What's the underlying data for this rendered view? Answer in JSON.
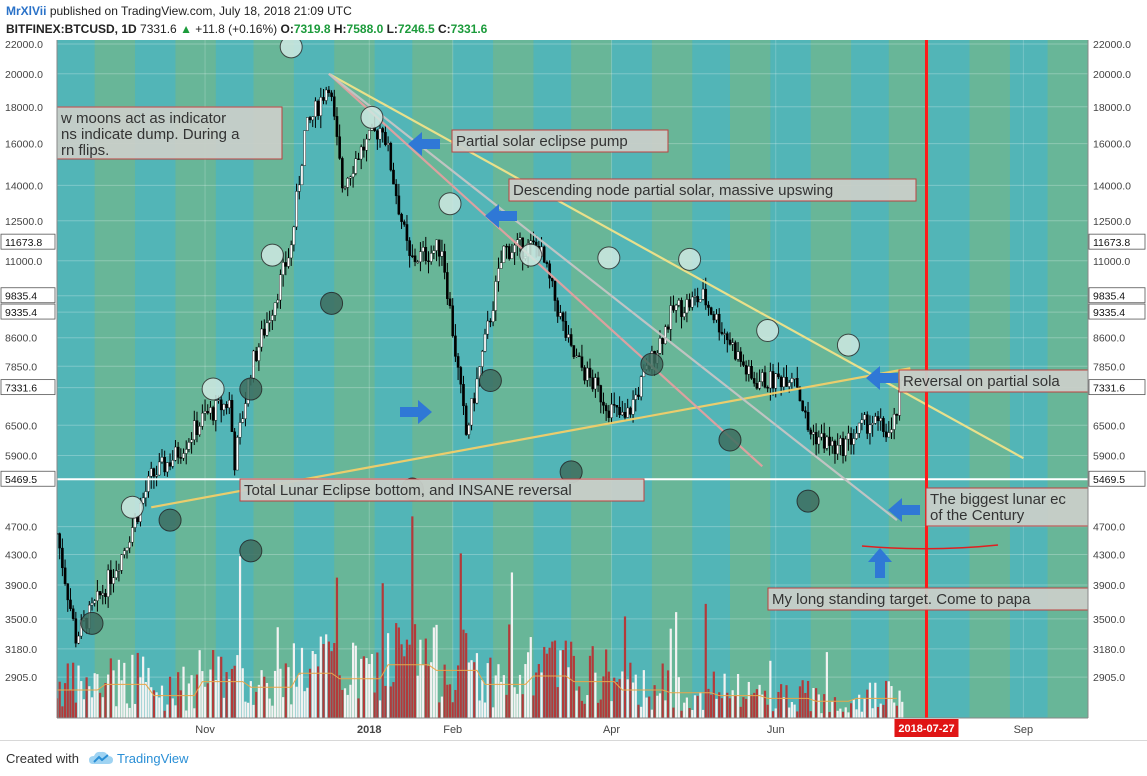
{
  "header": {
    "author": "MrXlVii",
    "published": "published on TradingView.com, July 18, 2018 21:09 UTC",
    "symbol": "BITFINEX:BTCUSD, 1D",
    "last": "7331.6",
    "change": "+11.8 (+0.16%)",
    "o_label": "O:",
    "o": "7319.8",
    "h_label": "H:",
    "h": "7588.0",
    "l_label": "L:",
    "l": "7246.5",
    "c_label": "C:",
    "c": "7331.6"
  },
  "footer": {
    "created_with": "Created with",
    "brand": "TradingView"
  },
  "colors": {
    "bg_teal": "#5bb8a6",
    "bg_blue": "#4bb3c4",
    "bg_green": "#72b48c",
    "candle": "#000000",
    "candle_up": "#ffffff",
    "vol_up": "#f2f2f2",
    "vol_down": "#b33a3a",
    "yellow_line": "#f1e38a",
    "orange_line": "#f3cf6a",
    "pink_line": "#e3a0a0",
    "grey_line": "#c5c5c5",
    "red_line": "#ff1a1a",
    "arrow_blue": "#2f78d6",
    "moon_full": "#cfe9e2",
    "moon_new": "#3e6e60"
  },
  "chart_data": {
    "type": "candlestick",
    "scale": "log",
    "ylim": [
      2700,
      22000
    ],
    "y_ticks": [
      "22000.0",
      "20000.0",
      "18000.0",
      "16000.0",
      "14000.0",
      "12500.0",
      "11000.0",
      "9835.4",
      "9335.4",
      "8600.0",
      "7850.0",
      "7331.6",
      "6500.0",
      "5900.0",
      "5469.5",
      "4700.0",
      "4300.0",
      "3900.0",
      "3500.0",
      "3180.0",
      "2905.0"
    ],
    "highlighted_ticks": [
      "11673.8",
      "9835.4",
      "9335.4",
      "7331.6",
      "5469.5"
    ],
    "y_values": [
      22000,
      20000,
      18000,
      16000,
      14000,
      12500,
      11000,
      9835.4,
      9335.4,
      8600,
      7850,
      7331.6,
      6500,
      5900,
      5469.5,
      4700,
      4300,
      3900,
      3500,
      3180,
      2905
    ],
    "x_range": [
      "2017-09-07",
      "2018-09-25"
    ],
    "x_ticks": [
      {
        "label": "Nov",
        "date": "2017-11-01"
      },
      {
        "label": "2018",
        "date": "2018-01-01"
      },
      {
        "label": "Feb",
        "date": "2018-02-01"
      },
      {
        "label": "Apr",
        "date": "2018-04-01"
      },
      {
        "label": "Jun",
        "date": "2018-06-01"
      },
      {
        "label": "2018-07-27",
        "date": "2018-07-27",
        "highlight": true
      },
      {
        "label": "Sep",
        "date": "2018-09-01"
      }
    ],
    "price_path": [
      [
        "2017-09-07",
        4600
      ],
      [
        "2017-09-14",
        3300
      ],
      [
        "2017-09-22",
        3700
      ],
      [
        "2017-10-01",
        4300
      ],
      [
        "2017-10-12",
        5500
      ],
      [
        "2017-10-21",
        5900
      ],
      [
        "2017-11-01",
        6700
      ],
      [
        "2017-11-10",
        7000
      ],
      [
        "2017-11-12",
        5800
      ],
      [
        "2017-11-18",
        7800
      ],
      [
        "2017-11-26",
        9500
      ],
      [
        "2017-12-03",
        11500
      ],
      [
        "2017-12-08",
        16500
      ],
      [
        "2017-12-17",
        19500
      ],
      [
        "2017-12-22",
        14000
      ],
      [
        "2017-12-28",
        15500
      ],
      [
        "2018-01-06",
        17000
      ],
      [
        "2018-01-16",
        11000
      ],
      [
        "2018-01-28",
        11500
      ],
      [
        "2018-02-06",
        6300
      ],
      [
        "2018-02-20",
        11400
      ],
      [
        "2018-03-05",
        11500
      ],
      [
        "2018-03-17",
        8200
      ],
      [
        "2018-03-31",
        6900
      ],
      [
        "2018-04-06",
        6600
      ],
      [
        "2018-04-24",
        9400
      ],
      [
        "2018-05-05",
        9800
      ],
      [
        "2018-05-15",
        8500
      ],
      [
        "2018-05-23",
        7500
      ],
      [
        "2018-06-01",
        7500
      ],
      [
        "2018-06-08",
        7700
      ],
      [
        "2018-06-13",
        6400
      ],
      [
        "2018-06-24",
        6000
      ],
      [
        "2018-07-06",
        6600
      ],
      [
        "2018-07-14",
        6300
      ],
      [
        "2018-07-18",
        7330
      ]
    ],
    "volume_bias": [
      1.0,
      1.2,
      0.8,
      1.3,
      1.1,
      1.6,
      1.4,
      1.9,
      1.7,
      1.2,
      1.5,
      1.3,
      1.0,
      0.9,
      0.8,
      0.7,
      0.6,
      0.7
    ],
    "trendlines": [
      {
        "name": "yellow",
        "color": "#f1e38a",
        "from": [
          "2017-12-17",
          20000
        ],
        "to": [
          "2018-09-01",
          5850
        ]
      },
      {
        "name": "orange",
        "color": "#f3cf6a",
        "from": [
          "2017-10-12",
          5000
        ],
        "to": [
          "2018-07-21",
          7800
        ]
      },
      {
        "name": "pink",
        "color": "#e3a0a0",
        "from": [
          "2017-12-17",
          20000
        ],
        "to": [
          "2018-05-27",
          5700
        ]
      },
      {
        "name": "grey",
        "color": "#c5c5c5",
        "from": [
          "2017-12-17",
          20000
        ],
        "to": [
          "2018-07-16",
          4800
        ]
      }
    ],
    "horizontal_lines": [
      {
        "color": "#ffffff",
        "y": 5469.5
      }
    ],
    "vertical_lines": [
      {
        "color": "#ff1a1a",
        "date": "2018-07-27"
      }
    ],
    "full_moons": [
      [
        "2017-10-05",
        5000
      ],
      [
        "2017-11-04",
        7300
      ],
      [
        "2017-12-03",
        22000
      ],
      [
        "2017-12-03",
        11200
      ],
      [
        "2018-01-02",
        17400
      ],
      [
        "2018-01-31",
        13200
      ],
      [
        "2018-03-02",
        11200
      ],
      [
        "2018-03-31",
        11200
      ],
      [
        "2018-04-30",
        11000
      ],
      [
        "2018-05-29",
        8800
      ],
      [
        "2018-06-28",
        8400
      ],
      [
        "2017-11-04",
        7300
      ]
    ],
    "full_moon_extra": [
      [
        "2017-11-04",
        7300
      ],
      [
        "2017-12-03",
        11200
      ]
    ],
    "new_moons": [
      [
        "2017-09-20",
        3450
      ],
      [
        "2017-10-19",
        4800
      ],
      [
        "2017-11-18",
        7300
      ],
      [
        "2017-12-18",
        9600
      ],
      [
        "2018-01-17",
        5300
      ],
      [
        "2018-02-15",
        7500
      ],
      [
        "2018-03-17",
        5600
      ],
      [
        "2018-04-16",
        7900
      ],
      [
        "2018-05-15",
        6200
      ],
      [
        "2018-06-13",
        5100
      ]
    ],
    "annotations": [
      {
        "text": "w moons act as indicator",
        "text2": "ns indicate dump. During a",
        "text3": "rn flips."
      },
      {
        "text": "Partial solar eclipse pump"
      },
      {
        "text": "Descending node partial solar, massive upswing"
      },
      {
        "text": "Reversal on partial sola"
      },
      {
        "text": "Total Lunar Eclipse bottom, and INSANE reversal"
      },
      {
        "text": "The biggest lunar ec",
        "text2": "of the Century"
      },
      {
        "text": "My long standing target. Come to papa"
      }
    ]
  }
}
